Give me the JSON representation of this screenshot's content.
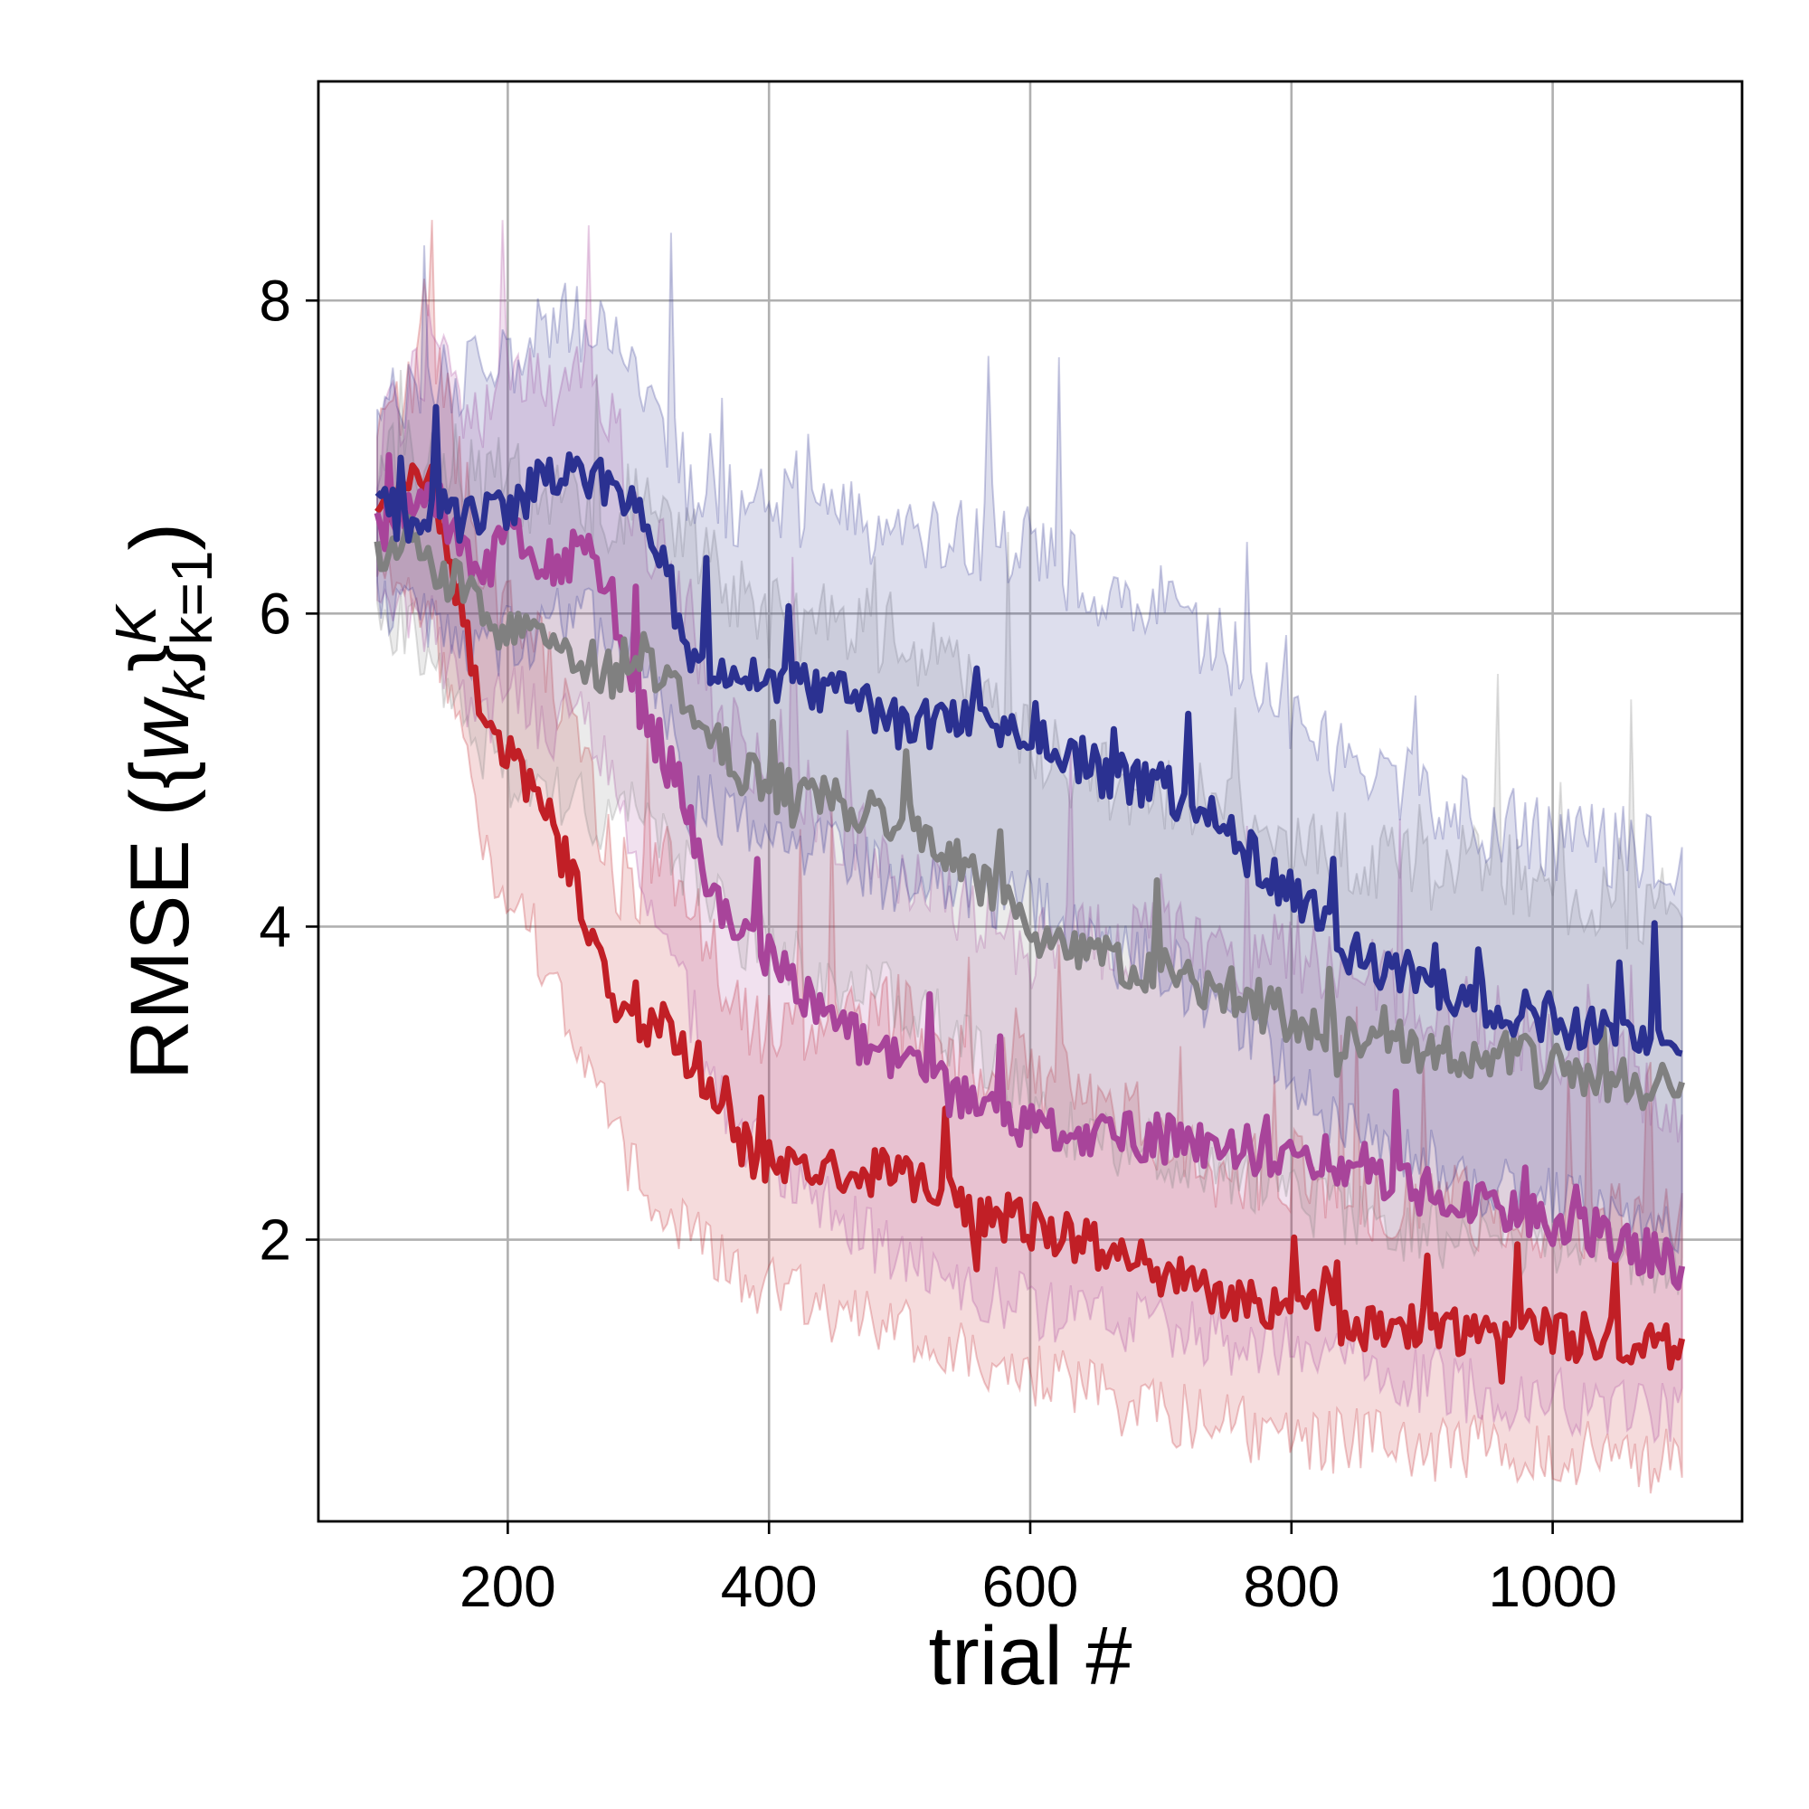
{
  "chart_data": {
    "type": "line",
    "xlabel": "trial #",
    "ylabel": "RMSE ({w_k}_{k=1}^K)",
    "xlim": [
      55,
      1145
    ],
    "ylim": [
      0.2,
      9.4
    ],
    "xticks": [
      200,
      400,
      600,
      800,
      1000
    ],
    "yticks": [
      2,
      4,
      6,
      8
    ],
    "grid": true,
    "legend": "none",
    "shaded_band": true,
    "series": [
      {
        "color": "#c11f26",
        "x": [
          100,
          120,
          140,
          160,
          180,
          200,
          220,
          240,
          260,
          280,
          300,
          320,
          340,
          360,
          380,
          400,
          450,
          500,
          550,
          600,
          650,
          700,
          750,
          800,
          850,
          900,
          950,
          1000,
          1050,
          1100
        ],
        "y": [
          6.6,
          6.8,
          6.9,
          6.2,
          5.4,
          5.1,
          4.9,
          4.5,
          4.1,
          3.5,
          3.3,
          3.4,
          3.1,
          2.8,
          2.6,
          2.5,
          2.4,
          2.45,
          2.2,
          2.1,
          1.95,
          1.8,
          1.6,
          1.6,
          1.45,
          1.45,
          1.4,
          1.4,
          1.35,
          1.3
        ],
        "lower": [
          6.2,
          6.3,
          6.1,
          5.4,
          4.6,
          4.3,
          4.0,
          3.6,
          3.2,
          2.7,
          2.4,
          2.3,
          2.1,
          1.95,
          1.85,
          1.75,
          1.55,
          1.5,
          1.35,
          1.2,
          1.05,
          0.95,
          0.85,
          0.8,
          0.75,
          0.72,
          0.7,
          0.68,
          0.65,
          0.62
        ],
        "upper": [
          7.0,
          7.3,
          7.7,
          7.0,
          6.2,
          5.9,
          5.8,
          5.4,
          5.0,
          4.3,
          4.2,
          4.5,
          4.1,
          3.7,
          3.4,
          3.3,
          3.25,
          3.4,
          3.05,
          3.0,
          2.85,
          2.65,
          2.35,
          2.4,
          2.15,
          2.2,
          2.1,
          2.1,
          2.05,
          2.0
        ]
      },
      {
        "color": "#a8449a",
        "x": [
          100,
          120,
          140,
          160,
          180,
          200,
          220,
          240,
          260,
          280,
          300,
          320,
          340,
          360,
          380,
          400,
          450,
          500,
          550,
          600,
          650,
          700,
          750,
          800,
          850,
          900,
          950,
          1000,
          1050,
          1100
        ],
        "y": [
          6.5,
          6.7,
          6.8,
          6.5,
          6.2,
          6.6,
          6.4,
          6.3,
          6.5,
          6.1,
          5.4,
          5.1,
          4.7,
          4.1,
          3.9,
          3.8,
          3.4,
          3.1,
          2.9,
          2.7,
          2.7,
          2.65,
          2.6,
          2.55,
          2.5,
          2.3,
          2.2,
          2.1,
          2.0,
          1.8
        ],
        "lower": [
          6.0,
          6.1,
          6.0,
          5.6,
          5.3,
          5.6,
          5.4,
          5.3,
          5.4,
          5.0,
          4.3,
          3.9,
          3.5,
          3.0,
          2.7,
          2.6,
          2.2,
          1.9,
          1.75,
          1.6,
          1.55,
          1.45,
          1.4,
          1.35,
          1.3,
          1.15,
          1.05,
          1.0,
          0.95,
          0.9
        ],
        "upper": [
          7.0,
          7.3,
          7.6,
          7.4,
          7.1,
          7.6,
          7.4,
          7.3,
          7.6,
          7.2,
          6.5,
          6.3,
          5.9,
          5.2,
          5.1,
          5.0,
          4.6,
          4.3,
          4.05,
          3.8,
          3.85,
          3.85,
          3.8,
          3.75,
          3.7,
          3.45,
          3.35,
          3.2,
          3.05,
          2.7
        ]
      },
      {
        "color": "#808080",
        "x": [
          100,
          120,
          140,
          160,
          180,
          200,
          220,
          240,
          260,
          280,
          300,
          320,
          340,
          360,
          380,
          400,
          450,
          500,
          550,
          600,
          650,
          700,
          750,
          800,
          850,
          900,
          950,
          1000,
          1050,
          1100
        ],
        "y": [
          6.4,
          6.5,
          6.3,
          6.2,
          6.0,
          5.9,
          5.8,
          5.8,
          5.7,
          5.6,
          5.8,
          5.6,
          5.4,
          5.2,
          5.0,
          4.9,
          4.8,
          4.7,
          4.4,
          4.0,
          3.8,
          3.7,
          3.6,
          3.4,
          3.3,
          3.2,
          3.2,
          3.1,
          3.0,
          3.0
        ],
        "lower": [
          5.9,
          6.0,
          5.7,
          5.5,
          5.2,
          5.0,
          4.9,
          4.9,
          4.8,
          4.7,
          4.8,
          4.6,
          4.4,
          4.2,
          4.0,
          3.9,
          3.7,
          3.6,
          3.3,
          2.9,
          2.7,
          2.6,
          2.5,
          2.3,
          2.2,
          2.1,
          2.05,
          2.0,
          1.95,
          1.9
        ],
        "upper": [
          6.9,
          7.0,
          6.9,
          6.9,
          6.8,
          6.8,
          6.7,
          6.7,
          6.6,
          6.5,
          6.8,
          6.6,
          6.4,
          6.2,
          6.0,
          5.9,
          5.9,
          5.8,
          5.5,
          5.1,
          4.9,
          4.8,
          4.7,
          4.5,
          4.4,
          4.3,
          4.35,
          4.2,
          4.05,
          4.1
        ]
      },
      {
        "color": "#2b3191",
        "x": [
          100,
          120,
          140,
          160,
          180,
          200,
          220,
          240,
          260,
          280,
          300,
          320,
          340,
          360,
          380,
          400,
          450,
          500,
          550,
          600,
          650,
          700,
          750,
          800,
          850,
          900,
          950,
          1000,
          1050,
          1100
        ],
        "y": [
          6.7,
          6.6,
          6.7,
          6.6,
          6.6,
          6.7,
          6.8,
          6.9,
          6.9,
          6.8,
          6.6,
          6.3,
          5.7,
          5.7,
          5.6,
          5.6,
          5.5,
          5.3,
          5.3,
          5.3,
          5.0,
          4.9,
          4.6,
          4.2,
          3.8,
          3.65,
          3.5,
          3.4,
          3.3,
          3.25
        ],
        "lower": [
          6.2,
          6.0,
          6.0,
          5.9,
          5.8,
          5.9,
          5.9,
          6.0,
          6.0,
          5.9,
          5.7,
          5.4,
          4.8,
          4.8,
          4.7,
          4.7,
          4.5,
          4.3,
          4.3,
          4.2,
          3.9,
          3.8,
          3.5,
          3.1,
          2.7,
          2.55,
          2.4,
          2.3,
          2.2,
          2.15
        ],
        "upper": [
          7.2,
          7.3,
          7.5,
          7.4,
          7.5,
          7.6,
          7.7,
          7.8,
          7.8,
          7.7,
          7.5,
          7.2,
          6.7,
          6.7,
          6.6,
          6.6,
          6.6,
          6.4,
          6.4,
          6.4,
          6.1,
          6.0,
          5.7,
          5.3,
          4.9,
          4.8,
          4.6,
          4.5,
          4.45,
          4.4
        ]
      }
    ]
  }
}
